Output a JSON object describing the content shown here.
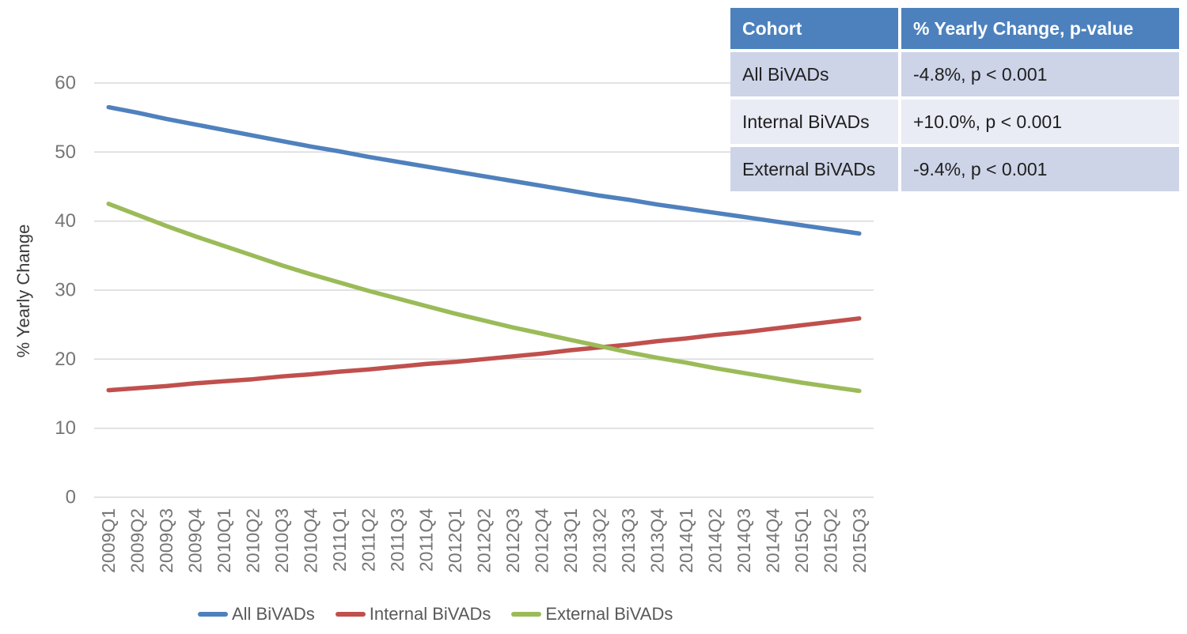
{
  "chart_data": {
    "type": "line",
    "title": "",
    "xlabel": "",
    "ylabel": "% Yearly Change",
    "ylim": [
      0,
      60
    ],
    "yticks": [
      0,
      10,
      20,
      30,
      40,
      50,
      60
    ],
    "grid": true,
    "legend_position": "bottom",
    "categories": [
      "2009Q1",
      "2009Q2",
      "2009Q3",
      "2009Q4",
      "2010Q1",
      "2010Q2",
      "2010Q3",
      "2010Q4",
      "2011Q1",
      "2011Q2",
      "2011Q3",
      "2011Q4",
      "2012Q1",
      "2012Q2",
      "2012Q3",
      "2012Q4",
      "2013Q1",
      "2013Q2",
      "2013Q3",
      "2013Q4",
      "2014Q1",
      "2014Q2",
      "2014Q3",
      "2014Q4",
      "2015Q1",
      "2015Q2",
      "2015Q3"
    ],
    "series": [
      {
        "name": "All BiVADs",
        "color": "#4F81BD",
        "values": [
          56.5,
          55.7,
          54.8,
          54.0,
          53.2,
          52.4,
          51.6,
          50.8,
          50.1,
          49.3,
          48.6,
          47.9,
          47.2,
          46.5,
          45.8,
          45.1,
          44.4,
          43.7,
          43.1,
          42.4,
          41.8,
          41.2,
          40.6,
          40.0,
          39.4,
          38.8,
          38.2
        ]
      },
      {
        "name": "Internal BiVADs",
        "color": "#C0504D",
        "values": [
          15.5,
          15.8,
          16.1,
          16.5,
          16.8,
          17.1,
          17.5,
          17.8,
          18.2,
          18.5,
          18.9,
          19.3,
          19.6,
          20.0,
          20.4,
          20.8,
          21.3,
          21.7,
          22.1,
          22.6,
          23.0,
          23.5,
          23.9,
          24.4,
          24.9,
          25.4,
          25.9
        ]
      },
      {
        "name": "External BiVADs",
        "color": "#9BBB59",
        "values": [
          42.5,
          40.9,
          39.3,
          37.8,
          36.4,
          35.0,
          33.6,
          32.3,
          31.1,
          29.9,
          28.8,
          27.7,
          26.6,
          25.6,
          24.6,
          23.7,
          22.8,
          21.9,
          21.0,
          20.2,
          19.5,
          18.7,
          18.0,
          17.3,
          16.6,
          16.0,
          15.4
        ]
      }
    ]
  },
  "summary_table": {
    "columns": [
      "Cohort",
      "% Yearly Change, p-value"
    ],
    "rows": [
      {
        "cohort": "All BiVADs",
        "value": "-4.8%, p < 0.001"
      },
      {
        "cohort": "Internal BiVADs",
        "value": "+10.0%, p < 0.001"
      },
      {
        "cohort": "External BiVADs",
        "value": "-9.4%, p < 0.001"
      }
    ],
    "colors": {
      "header_bg": "#4C81BD",
      "header_text": "#FFFFFF",
      "row_bg_1": "#CDD4E8",
      "row_bg_2": "#E9EBF5",
      "cell_text": "#1F1F1F"
    }
  },
  "style": {
    "background": "#FFFFFF",
    "grid_color": "#D9D9D9",
    "tick_color": "#767676",
    "axis_title_color": "#3B3B3B",
    "legend_text_color": "#595959"
  }
}
